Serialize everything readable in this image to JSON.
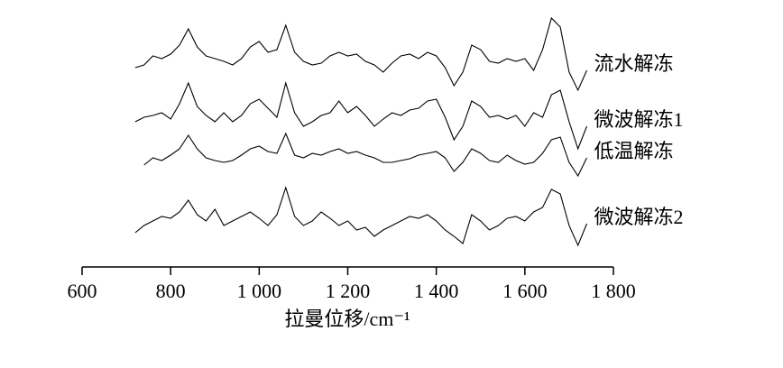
{
  "chart_data": {
    "type": "line",
    "x_label": "拉曼位移/cm⁻¹",
    "xlim": [
      600,
      1800
    ],
    "xticks": [
      600,
      800,
      {
        "value": 1000,
        "label": "1 000"
      },
      {
        "value": 1200,
        "label": "1 200"
      },
      {
        "value": 1400,
        "label": "1 400"
      },
      {
        "value": 1600,
        "label": "1 600"
      },
      {
        "value": 1800,
        "label": "1 800"
      }
    ],
    "ylim": [
      0,
      280
    ],
    "x": [
      720,
      740,
      760,
      780,
      800,
      820,
      840,
      860,
      880,
      900,
      920,
      940,
      960,
      980,
      1000,
      1020,
      1040,
      1060,
      1080,
      1100,
      1120,
      1140,
      1160,
      1180,
      1200,
      1220,
      1240,
      1260,
      1280,
      1300,
      1320,
      1340,
      1360,
      1380,
      1400,
      1420,
      1440,
      1460,
      1480,
      1500,
      1520,
      1540,
      1560,
      1580,
      1600,
      1620,
      1640,
      1660,
      1680,
      1700,
      1720,
      1740
    ],
    "series": [
      {
        "name": "流水解冻",
        "color": "#000000",
        "values": [
          221,
          224,
          234,
          231,
          236,
          246,
          264,
          244,
          234,
          231,
          228,
          224,
          231,
          244,
          250,
          238,
          241,
          268,
          238,
          228,
          224,
          226,
          234,
          238,
          234,
          236,
          228,
          224,
          216,
          226,
          234,
          236,
          231,
          238,
          234,
          221,
          201,
          216,
          246,
          241,
          228,
          226,
          231,
          228,
          231,
          218,
          241,
          276,
          266,
          216,
          196,
          218
        ]
      },
      {
        "name": "微波解冻1",
        "color": "#000000",
        "values": [
          161,
          166,
          168,
          171,
          164,
          181,
          204,
          178,
          168,
          161,
          171,
          161,
          168,
          181,
          186,
          176,
          166,
          204,
          171,
          156,
          161,
          168,
          171,
          184,
          171,
          178,
          168,
          156,
          164,
          171,
          168,
          174,
          176,
          184,
          186,
          166,
          141,
          156,
          184,
          178,
          166,
          168,
          164,
          168,
          156,
          171,
          166,
          191,
          196,
          161,
          131,
          156
        ]
      },
      {
        "name": "低温解冻",
        "color": "#000000",
        "values": [
          null,
          113,
          121,
          118,
          124,
          131,
          146,
          131,
          121,
          118,
          116,
          118,
          124,
          131,
          134,
          128,
          126,
          148,
          124,
          121,
          126,
          124,
          128,
          131,
          126,
          128,
          124,
          121,
          116,
          116,
          118,
          120,
          124,
          126,
          128,
          121,
          106,
          116,
          131,
          126,
          118,
          116,
          124,
          118,
          114,
          116,
          126,
          141,
          144,
          116,
          101,
          121
        ]
      },
      {
        "name": "微波解冻2",
        "color": "#000000",
        "values": [
          38,
          46,
          51,
          56,
          54,
          61,
          74,
          58,
          51,
          64,
          46,
          51,
          56,
          61,
          54,
          46,
          58,
          88,
          56,
          46,
          51,
          61,
          54,
          46,
          51,
          41,
          44,
          34,
          41,
          46,
          51,
          56,
          54,
          58,
          51,
          41,
          34,
          26,
          58,
          51,
          41,
          46,
          54,
          56,
          51,
          61,
          66,
          86,
          81,
          46,
          24,
          48
        ]
      }
    ]
  }
}
